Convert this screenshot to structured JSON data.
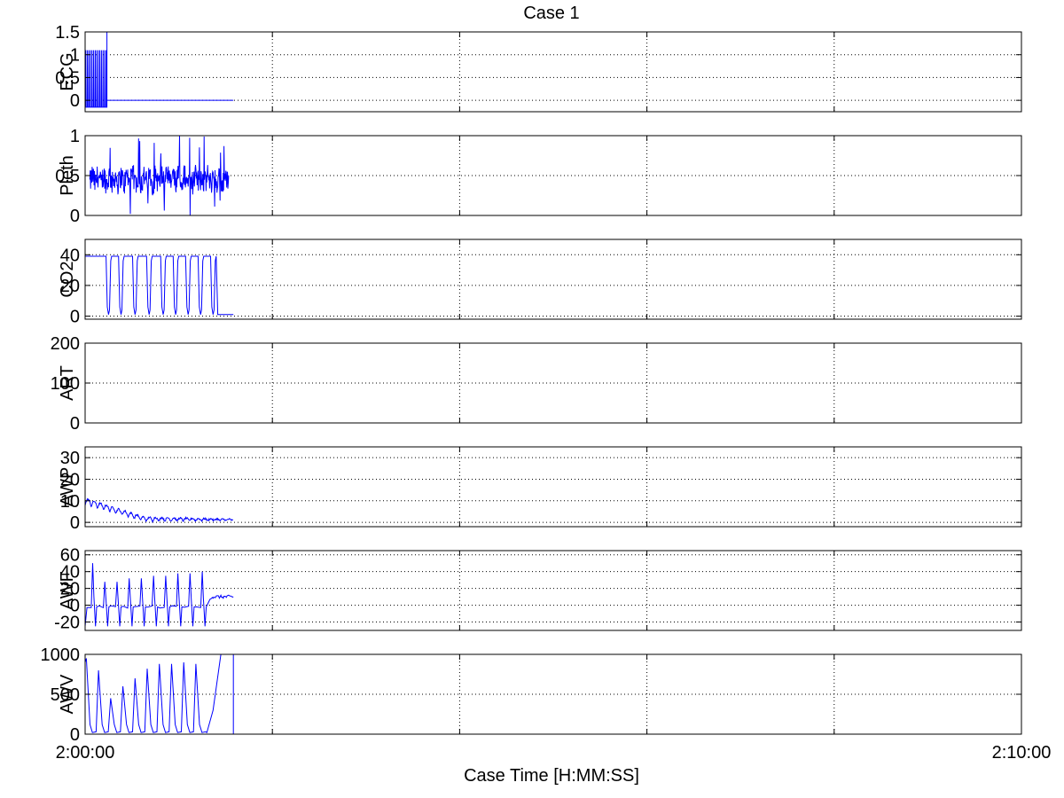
{
  "figure": {
    "title": "Case 1",
    "xlabel": "Case Time [H:MM:SS]",
    "x_start_label": "2:00:00",
    "x_end_label": "2:10:00",
    "line_color": "#0000ff",
    "grid": true
  },
  "chart_data": [
    {
      "type": "line",
      "ylabel": "ECG",
      "ylim": [
        -0.25,
        1.5
      ],
      "yticks": [
        0,
        0.5,
        1,
        1.5
      ],
      "ytick_labels": [
        "0",
        "0.5",
        "1",
        "1.5"
      ],
      "x_units": "seconds from 2:00:00",
      "xlim": [
        0,
        600
      ],
      "series": [
        {
          "style": "spikes",
          "x_range": [
            0,
            14
          ],
          "baseline": -0.15,
          "peak": 1.1,
          "count": 14,
          "then_flat": {
            "x_range": [
              14,
              95
            ],
            "value": 0
          }
        }
      ]
    },
    {
      "type": "line",
      "ylabel": "Pleth",
      "ylim": [
        0,
        1
      ],
      "yticks": [
        0,
        0.5,
        1
      ],
      "ytick_labels": [
        "0",
        "0.5",
        "1"
      ],
      "xlim": [
        0,
        600
      ],
      "series": [
        {
          "style": "noise",
          "x_range": [
            3,
            92
          ],
          "center": 0.45,
          "amplitude": 0.15,
          "spike_max": 1.0,
          "dip_min": 0.0
        }
      ]
    },
    {
      "type": "line",
      "ylabel": "CO2",
      "ylim": [
        -2,
        50
      ],
      "yticks": [
        0,
        20,
        40
      ],
      "ytick_labels": [
        "0",
        "20",
        "40"
      ],
      "xlim": [
        0,
        600
      ],
      "series": [
        {
          "style": "square-wave",
          "x_range": [
            0,
            95
          ],
          "high": 39,
          "low": 1,
          "dip_centers": [
            15,
            23,
            32,
            41,
            50,
            58,
            66,
            74,
            82
          ],
          "final_low_from": 85
        }
      ]
    },
    {
      "type": "line",
      "ylabel": "ART",
      "ylim": [
        0,
        200
      ],
      "yticks": [
        0,
        100,
        200
      ],
      "ytick_labels": [
        "0",
        "100",
        "200"
      ],
      "xlim": [
        0,
        600
      ],
      "series": []
    },
    {
      "type": "line",
      "ylabel": "AWP",
      "ylim": [
        -2,
        35
      ],
      "yticks": [
        0,
        10,
        20,
        30
      ],
      "ytick_labels": [
        "0",
        "10",
        "20",
        "30"
      ],
      "xlim": [
        0,
        600
      ],
      "series": [
        {
          "style": "decaying-oscillation",
          "x_range": [
            0,
            95
          ],
          "start": 9,
          "end": 1,
          "amplitude": 3
        }
      ]
    },
    {
      "type": "line",
      "ylabel": "AWF",
      "ylim": [
        -30,
        65
      ],
      "yticks": [
        -20,
        0,
        20,
        40,
        60
      ],
      "ytick_labels": [
        "-20",
        "0",
        "20",
        "40",
        "60"
      ],
      "xlim": [
        0,
        600
      ],
      "series": [
        {
          "style": "flow-cycles",
          "x_range": [
            0,
            95
          ],
          "baseline": -2,
          "peaks": [
            50,
            28,
            28,
            32,
            32,
            35,
            35,
            38,
            38,
            40
          ],
          "trough": -25,
          "settle_value": 10,
          "settle_from": 78
        }
      ]
    },
    {
      "type": "line",
      "ylabel": "AWV",
      "ylim": [
        0,
        1000
      ],
      "yticks": [
        0,
        500,
        1000
      ],
      "ytick_labels": [
        "0",
        "500",
        "1000"
      ],
      "xlim": [
        0,
        600
      ],
      "series": [
        {
          "style": "volume-cycles",
          "x_range": [
            0,
            95
          ],
          "peaks": [
            950,
            800,
            450,
            600,
            700,
            820,
            880,
            880,
            900,
            880
          ],
          "ramp_to_max_from": 78,
          "vertical_drop_at": 95
        }
      ]
    }
  ]
}
